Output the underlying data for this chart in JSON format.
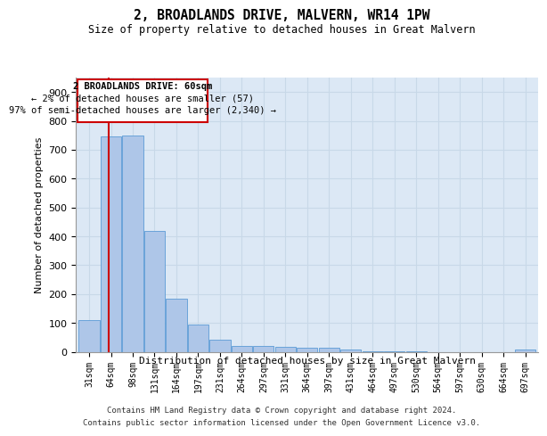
{
  "title": "2, BROADLANDS DRIVE, MALVERN, WR14 1PW",
  "subtitle": "Size of property relative to detached houses in Great Malvern",
  "xlabel": "Distribution of detached houses by size in Great Malvern",
  "ylabel": "Number of detached properties",
  "footer_line1": "Contains HM Land Registry data © Crown copyright and database right 2024.",
  "footer_line2": "Contains public sector information licensed under the Open Government Licence v3.0.",
  "categories": [
    "31sqm",
    "64sqm",
    "98sqm",
    "131sqm",
    "164sqm",
    "197sqm",
    "231sqm",
    "264sqm",
    "297sqm",
    "331sqm",
    "364sqm",
    "397sqm",
    "431sqm",
    "464sqm",
    "497sqm",
    "530sqm",
    "564sqm",
    "597sqm",
    "630sqm",
    "664sqm",
    "697sqm"
  ],
  "values": [
    110,
    745,
    750,
    420,
    185,
    95,
    42,
    20,
    20,
    17,
    14,
    14,
    8,
    3,
    2,
    1,
    0,
    0,
    0,
    0,
    8
  ],
  "bar_color": "#aec6e8",
  "bar_edge_color": "#5b9bd5",
  "grid_color": "#c8d8e8",
  "background_color": "#dce8f5",
  "property_size_label": "2 BROADLANDS DRIVE: 60sqm",
  "annotation_line1": "← 2% of detached houses are smaller (57)",
  "annotation_line2": "97% of semi-detached houses are larger (2,340) →",
  "vline_color": "#cc0000",
  "annotation_box_color": "#cc0000",
  "ylim": [
    0,
    950
  ],
  "yticks": [
    0,
    100,
    200,
    300,
    400,
    500,
    600,
    700,
    800,
    900
  ]
}
